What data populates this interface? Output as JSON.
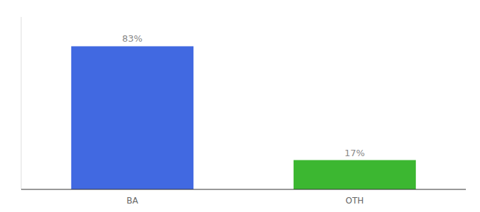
{
  "chart_data": {
    "type": "bar",
    "categories": [
      "BA",
      "OTH"
    ],
    "values": [
      83,
      17
    ],
    "value_labels": [
      "83%",
      "17%"
    ],
    "colors": [
      "#4169E1",
      "#3CB731"
    ],
    "ylim": [
      0,
      100
    ],
    "data_labels": true,
    "tick_labels": "x",
    "grid": false
  }
}
